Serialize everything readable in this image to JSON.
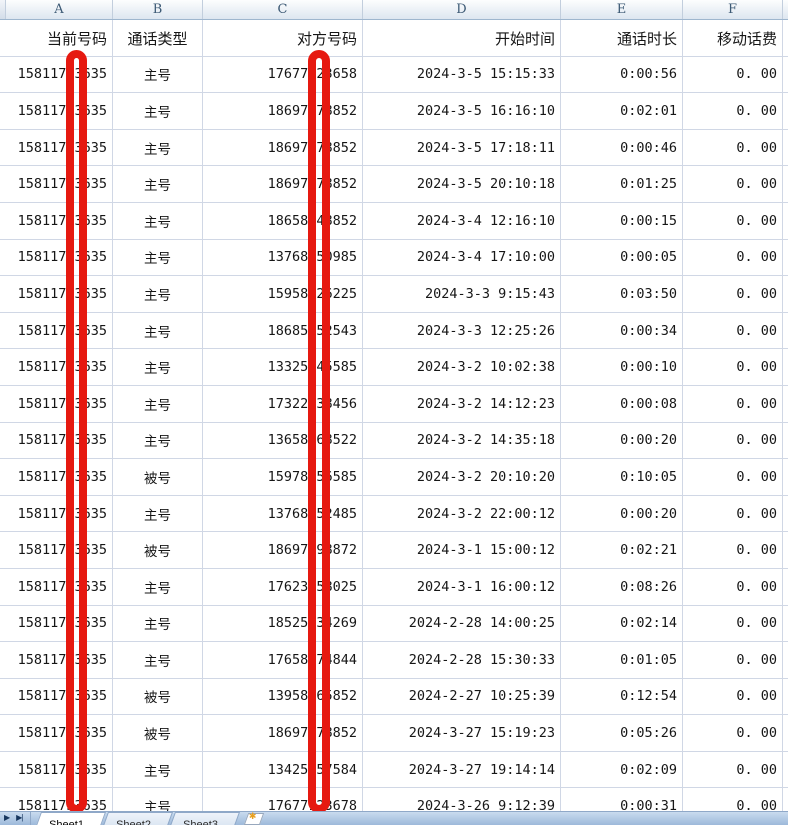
{
  "columns": [
    "A",
    "B",
    "C",
    "D",
    "E",
    "F"
  ],
  "headers": {
    "a": "当前号码",
    "b": "通话类型",
    "c": "对方号码",
    "d": "开始时间",
    "e": "通话时长",
    "f": "移动话费"
  },
  "rows": [
    {
      "a": "15811753635",
      "b": "主号",
      "c": "17677123658",
      "d": "2024-3-5 15:15:33",
      "e": "0:00:56",
      "f": "0. 00"
    },
    {
      "a": "15811753635",
      "b": "主号",
      "c": "18697378852",
      "d": "2024-3-5 16:16:10",
      "e": "0:02:01",
      "f": "0. 00"
    },
    {
      "a": "15811753635",
      "b": "主号",
      "c": "18697378852",
      "d": "2024-3-5 17:18:11",
      "e": "0:00:46",
      "f": "0. 00"
    },
    {
      "a": "15811753635",
      "b": "主号",
      "c": "18697378852",
      "d": "2024-3-5 20:10:18",
      "e": "0:01:25",
      "f": "0. 00"
    },
    {
      "a": "15811753635",
      "b": "主号",
      "c": "18658748852",
      "d": "2024-3-4 12:16:10",
      "e": "0:00:15",
      "f": "0. 00"
    },
    {
      "a": "15811753635",
      "b": "主号",
      "c": "13768250985",
      "d": "2024-3-4 17:10:00",
      "e": "0:00:05",
      "f": "0. 00"
    },
    {
      "a": "15811753635",
      "b": "主号",
      "c": "15958426225",
      "d": "2024-3-3 9:15:43",
      "e": "0:03:50",
      "f": "0. 00"
    },
    {
      "a": "15811753635",
      "b": "主号",
      "c": "18685652543",
      "d": "2024-3-3 12:25:26",
      "e": "0:00:34",
      "f": "0. 00"
    },
    {
      "a": "15811753635",
      "b": "主号",
      "c": "13325845585",
      "d": "2024-3-2 10:02:38",
      "e": "0:00:10",
      "f": "0. 00"
    },
    {
      "a": "15811753635",
      "b": "主号",
      "c": "17322338456",
      "d": "2024-3-2 14:12:23",
      "e": "0:00:08",
      "f": "0. 00"
    },
    {
      "a": "15811753635",
      "b": "主号",
      "c": "13658568522",
      "d": "2024-3-2 14:35:18",
      "e": "0:00:20",
      "f": "0. 00"
    },
    {
      "a": "15811753635",
      "b": "被号",
      "c": "15978156585",
      "d": "2024-3-2 20:10:20",
      "e": "0:10:05",
      "f": "0. 00"
    },
    {
      "a": "15811753635",
      "b": "主号",
      "c": "13768252485",
      "d": "2024-3-2 22:00:12",
      "e": "0:00:20",
      "f": "0. 00"
    },
    {
      "a": "15811753635",
      "b": "被号",
      "c": "18697398872",
      "d": "2024-3-1 15:00:12",
      "e": "0:02:21",
      "f": "0. 00"
    },
    {
      "a": "15811753635",
      "b": "主号",
      "c": "17623358025",
      "d": "2024-3-1 16:00:12",
      "e": "0:08:26",
      "f": "0. 00"
    },
    {
      "a": "15811753635",
      "b": "主号",
      "c": "18525534269",
      "d": "2024-2-28 14:00:25",
      "e": "0:02:14",
      "f": "0. 00"
    },
    {
      "a": "15811753635",
      "b": "主号",
      "c": "17658474844",
      "d": "2024-2-28 15:30:33",
      "e": "0:01:05",
      "f": "0. 00"
    },
    {
      "a": "15811753635",
      "b": "被号",
      "c": "13958265852",
      "d": "2024-2-27 10:25:39",
      "e": "0:12:54",
      "f": "0. 00"
    },
    {
      "a": "15811753635",
      "b": "被号",
      "c": "18697378852",
      "d": "2024-3-27 15:19:23",
      "e": "0:05:26",
      "f": "0. 00"
    },
    {
      "a": "15811753635",
      "b": "主号",
      "c": "13425557584",
      "d": "2024-3-27 19:14:14",
      "e": "0:02:09",
      "f": "0. 00"
    },
    {
      "a": "15811753635",
      "b": "主号",
      "c": "17677123678",
      "d": "2024-3-26 9:12:39",
      "e": "0:00:31",
      "f": "0. 00"
    }
  ],
  "sheet_tabs": [
    {
      "label": "Sheet1",
      "active": true
    },
    {
      "label": "Sheet2",
      "active": false
    },
    {
      "label": "Sheet3",
      "active": false
    }
  ],
  "tab_nav": {
    "next": "▶",
    "last": "▶|"
  },
  "annotation": {
    "redaction_color": "#e61910",
    "redaction_targets": [
      "column-a-phone-digit",
      "column-c-phone-digit"
    ]
  },
  "colors": {
    "gridline": "#d0d7e5",
    "column_header_text": "#3d5a75"
  }
}
